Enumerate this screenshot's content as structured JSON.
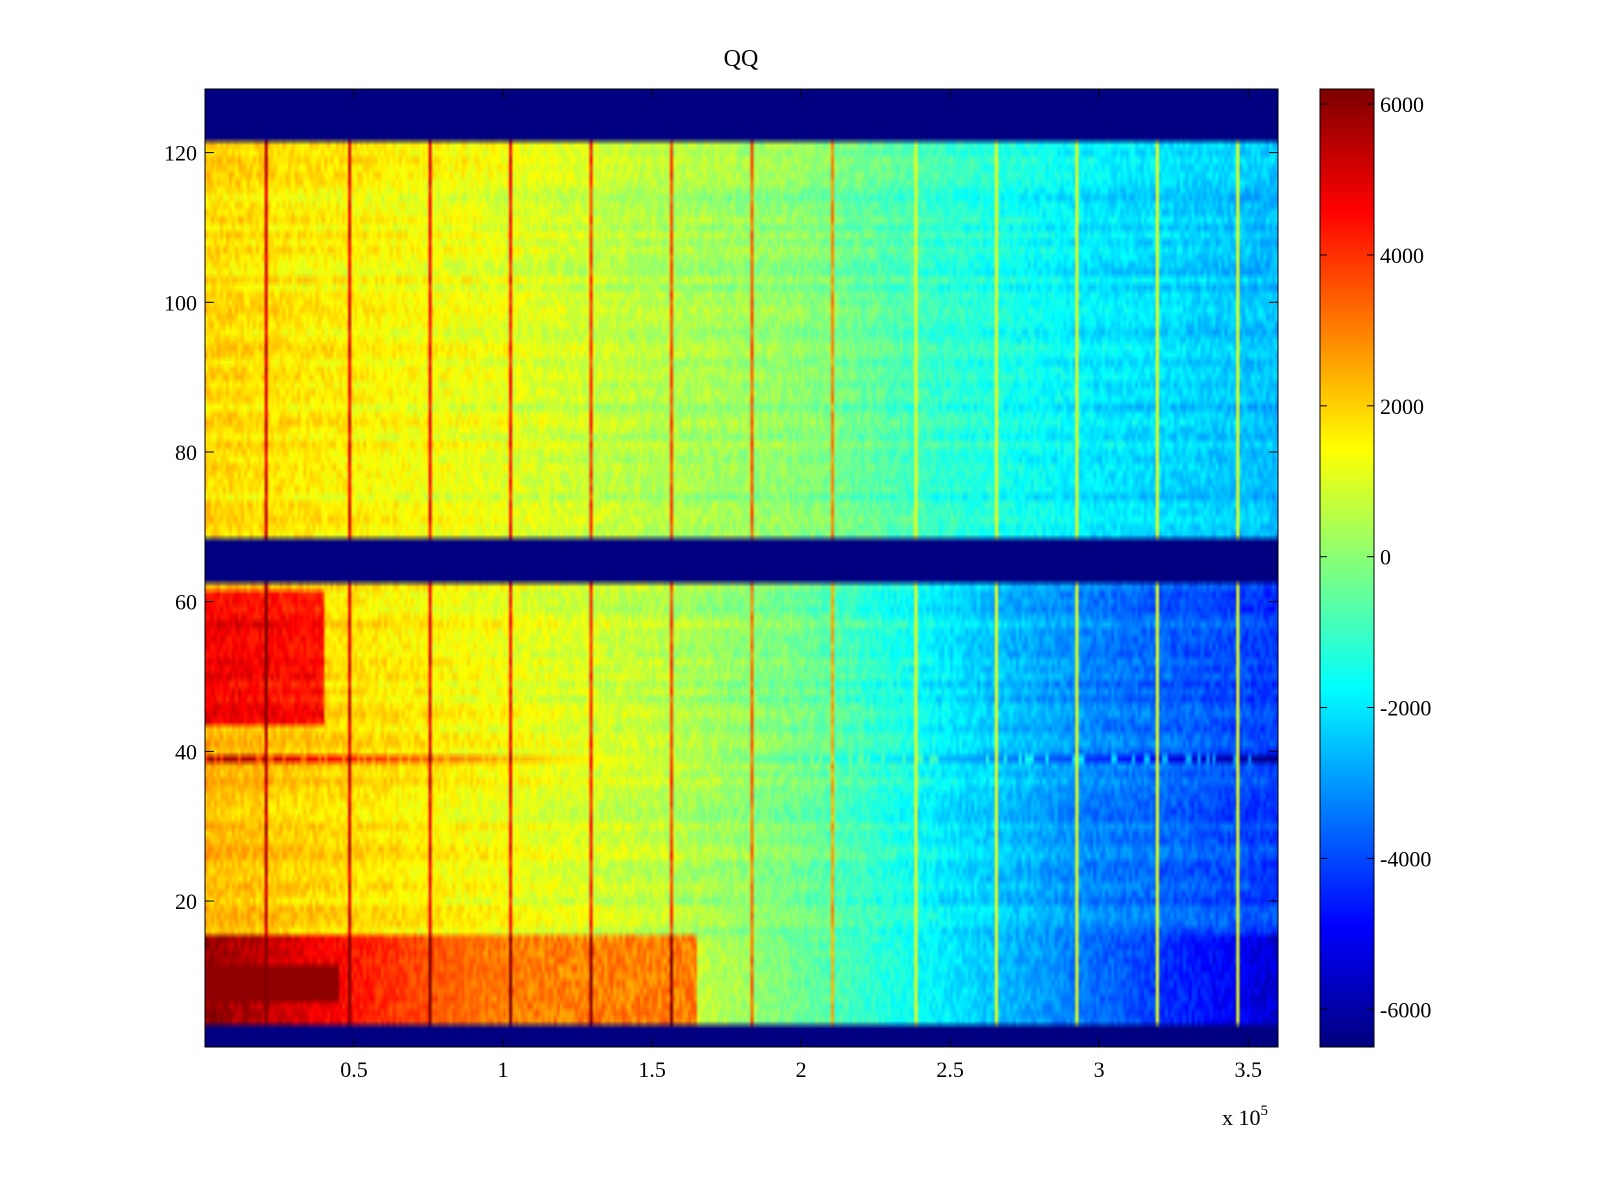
{
  "chart_data": {
    "type": "heatmap",
    "title": "QQ",
    "xlabel": "",
    "ylabel": "",
    "x_scale_label": {
      "base": "x 10",
      "exponent": "5"
    },
    "xlim": [
      0,
      360000
    ],
    "ylim": [
      0.5,
      128.5
    ],
    "x_ticks": [
      {
        "value": 50000,
        "label": "0.5"
      },
      {
        "value": 100000,
        "label": "1"
      },
      {
        "value": 150000,
        "label": "1.5"
      },
      {
        "value": 200000,
        "label": "2"
      },
      {
        "value": 250000,
        "label": "2.5"
      },
      {
        "value": 300000,
        "label": "3"
      },
      {
        "value": 350000,
        "label": "3.5"
      }
    ],
    "y_ticks": [
      {
        "value": 20,
        "label": "20"
      },
      {
        "value": 40,
        "label": "40"
      },
      {
        "value": 60,
        "label": "60"
      },
      {
        "value": 80,
        "label": "80"
      },
      {
        "value": 100,
        "label": "100"
      },
      {
        "value": 120,
        "label": "120"
      }
    ],
    "colormap": "jet",
    "clim": [
      -6500,
      6200
    ],
    "colorbar_ticks": [
      {
        "value": 6000,
        "label": "6000"
      },
      {
        "value": 4000,
        "label": "4000"
      },
      {
        "value": 2000,
        "label": "2000"
      },
      {
        "value": 0,
        "label": "0"
      },
      {
        "value": -2000,
        "label": "-2000"
      },
      {
        "value": -4000,
        "label": "-4000"
      },
      {
        "value": -6000,
        "label": "-6000"
      }
    ],
    "masked_row_bands": [
      [
        0.5,
        3.5
      ],
      [
        62.5,
        68.5
      ],
      [
        121.5,
        128.5
      ]
    ],
    "masked_value": -6500,
    "column_trend": {
      "x": [
        0,
        50000,
        100000,
        150000,
        200000,
        250000,
        300000,
        360000
      ],
      "upper_block_rows_68_121": [
        1900,
        1500,
        1100,
        500,
        0,
        -1200,
        -2000,
        -2600
      ],
      "lower_block_rows_4_61": [
        2300,
        1800,
        1300,
        700,
        -300,
        -2000,
        -3300,
        -4200
      ]
    },
    "hot_columns_x": [
      20000,
      48000,
      75000,
      102000,
      129000,
      156000,
      183000,
      210000
    ],
    "light_columns_x": [
      238000,
      265000,
      292000,
      319000,
      346000
    ],
    "anomalous_row": {
      "y": 39,
      "value_at_start": 6000,
      "value_at_end": -6500
    },
    "high_row_band": {
      "rows": [
        4,
        15
      ],
      "left_value": 6000,
      "right_value": -5500
    }
  }
}
